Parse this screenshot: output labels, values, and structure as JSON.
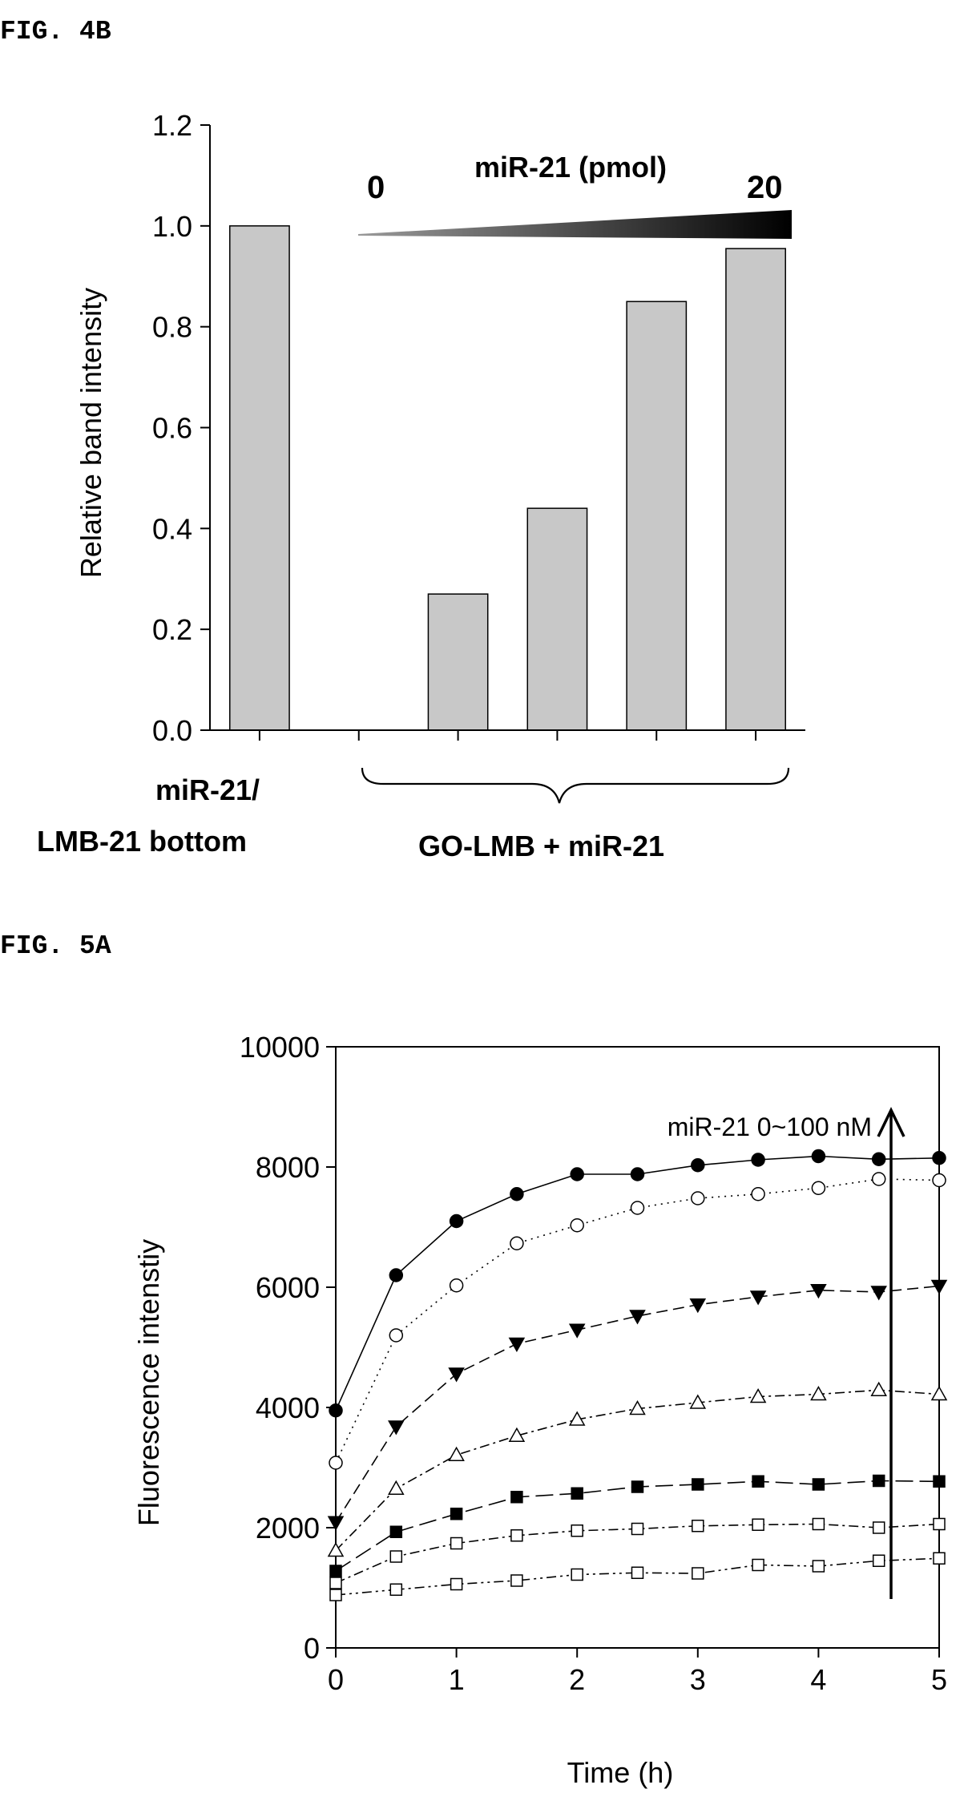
{
  "figures": [
    {
      "label": "FIG. 4B"
    },
    {
      "label": "FIG. 5A"
    }
  ],
  "chart_data": [
    {
      "type": "bar",
      "title": "",
      "ylabel": "Relative band intensity",
      "xlabel": "",
      "ylim": [
        0,
        1.2
      ],
      "yticks": [
        "0.0",
        "0.2",
        "0.4",
        "0.6",
        "0.8",
        "1.0",
        "1.2"
      ],
      "categories": [
        "miR-21/ LMB-21 bottom",
        "",
        "",
        "",
        "",
        ""
      ],
      "values": [
        1.0,
        0.0,
        0.27,
        0.44,
        0.85,
        0.955
      ],
      "bar_color": "#c8c8c8",
      "group_labels": {
        "left_line1": "miR-21/",
        "left_line2": "LMB-21 bottom",
        "right": "GO-LMB  + miR-21"
      },
      "gradient_annotation": {
        "label": "miR-21 (pmol)",
        "start": "0",
        "end": "20"
      }
    },
    {
      "type": "line",
      "title": "",
      "xlabel": "Time (h)",
      "ylabel": "Fluorescence intenstiy",
      "xlim": [
        0,
        5
      ],
      "ylim": [
        0,
        10000
      ],
      "xticks": [
        "0",
        "1",
        "2",
        "3",
        "4",
        "5"
      ],
      "yticks": [
        "0",
        "2000",
        "4000",
        "6000",
        "8000",
        "10000"
      ],
      "x": [
        0,
        0.5,
        1,
        1.5,
        2,
        2.5,
        3,
        3.5,
        4,
        4.5,
        5
      ],
      "annotation": "miR-21 0~100 nM",
      "series": [
        {
          "marker": "filled-circle",
          "dash": "solid",
          "values": [
            3950,
            6200,
            7100,
            7550,
            7880,
            7880,
            8030,
            8120,
            8180,
            8130,
            8150
          ]
        },
        {
          "marker": "open-circle",
          "dash": "dotted",
          "values": [
            3080,
            5200,
            6030,
            6730,
            7030,
            7320,
            7480,
            7550,
            7650,
            7800,
            7780
          ]
        },
        {
          "marker": "filled-triangle-down",
          "dash": "dash",
          "values": [
            2090,
            3680,
            4560,
            5060,
            5290,
            5520,
            5710,
            5840,
            5950,
            5920,
            6020
          ]
        },
        {
          "marker": "open-triangle-up",
          "dash": "dash-dot",
          "values": [
            1620,
            2650,
            3210,
            3530,
            3800,
            3980,
            4080,
            4180,
            4220,
            4290,
            4220
          ]
        },
        {
          "marker": "filled-square",
          "dash": "long-dash",
          "values": [
            1280,
            1930,
            2230,
            2510,
            2570,
            2680,
            2720,
            2770,
            2720,
            2780,
            2770
          ]
        },
        {
          "marker": "open-square",
          "dash": "dash-dot",
          "values": [
            1080,
            1520,
            1740,
            1870,
            1950,
            1980,
            2030,
            2050,
            2060,
            2000,
            2060
          ]
        },
        {
          "marker": "open-square",
          "dash": "dash-dot-dot",
          "values": [
            880,
            970,
            1060,
            1120,
            1220,
            1250,
            1240,
            1380,
            1360,
            1450,
            1490
          ]
        }
      ]
    }
  ]
}
